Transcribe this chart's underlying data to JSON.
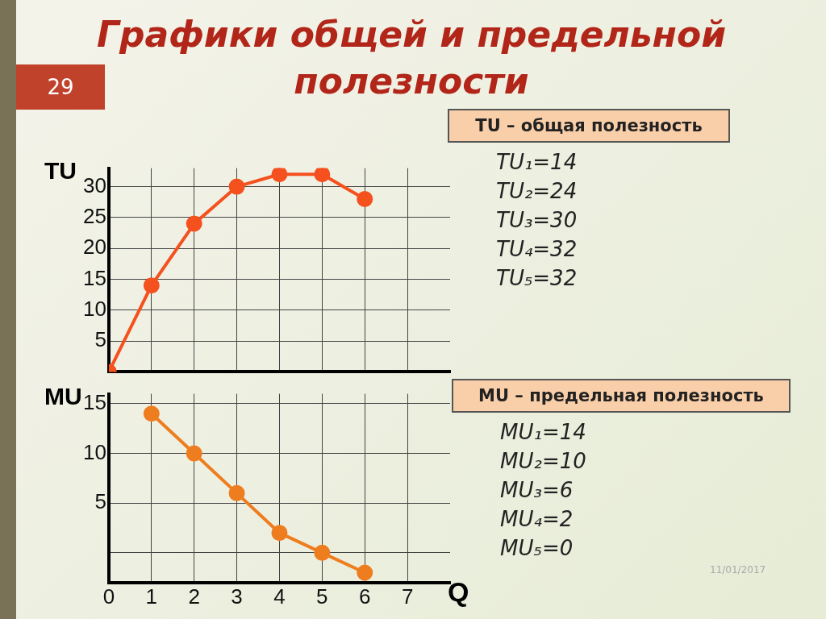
{
  "chart_data": [
    {
      "type": "line",
      "title": "Графики общей и предельной полезности",
      "ylabel": "TU",
      "x": [
        0,
        1,
        2,
        3,
        4,
        5,
        6
      ],
      "xlim": [
        0,
        8
      ],
      "xticks": [
        0,
        1,
        2,
        3,
        4,
        5,
        6,
        7
      ],
      "ylim": [
        0,
        33
      ],
      "yticks": [
        5,
        10,
        15,
        20,
        25,
        30
      ],
      "tick_labels": "y",
      "grid": true,
      "legend": false,
      "marker": "circle",
      "series": [
        {
          "color": "#f4511e",
          "values": [
            0,
            14,
            24,
            30,
            32,
            32,
            28
          ]
        }
      ],
      "annotations": [
        "TU – общая полезность",
        "TU₁=14",
        "TU₂=24",
        "TU₃=30",
        "TU₄=32",
        "TU₅=32"
      ]
    },
    {
      "type": "line",
      "ylabel": "MU",
      "xlabel": "Q",
      "x": [
        1,
        2,
        3,
        4,
        5,
        6
      ],
      "xlim": [
        0,
        8
      ],
      "xticks": [
        0,
        1,
        2,
        3,
        4,
        5,
        6,
        7
      ],
      "ylim": [
        -3,
        16
      ],
      "yticks": [
        {
          "value": 0,
          "label": null
        },
        5,
        10,
        15
      ],
      "grid": true,
      "legend": false,
      "marker": "circle",
      "series": [
        {
          "color": "#ee7d1f",
          "values": [
            14,
            10,
            6,
            2,
            0,
            -2
          ]
        }
      ],
      "annotations": [
        "MU – предельная полезность",
        "MU₁=14",
        "MU₂=10",
        "MU₃=6",
        "MU₄=2",
        "MU₅=0"
      ]
    },
    {
      "type": "other",
      "annotations": [
        "29",
        "11/01/2017"
      ]
    }
  ]
}
